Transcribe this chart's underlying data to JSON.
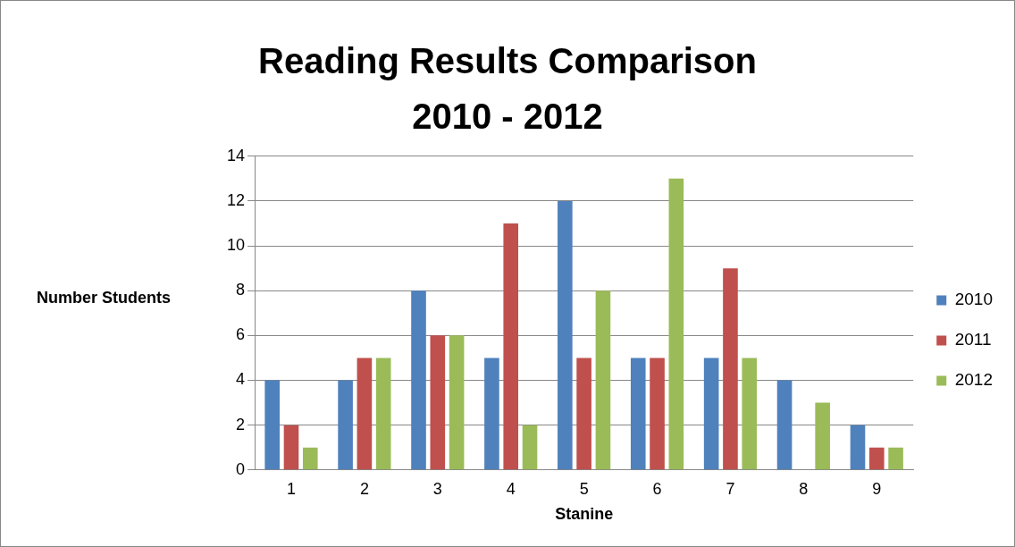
{
  "chart_data": {
    "type": "bar",
    "title": "Reading Results Comparison 2010 - 2012",
    "xlabel": "Stanine",
    "ylabel": "Number Students",
    "categories": [
      "1",
      "2",
      "3",
      "4",
      "5",
      "6",
      "7",
      "8",
      "9"
    ],
    "series": [
      {
        "name": "2010",
        "color": "#4f81bd",
        "values": [
          4,
          4,
          8,
          5,
          12,
          5,
          5,
          4,
          2
        ]
      },
      {
        "name": "2011",
        "color": "#c0504d",
        "values": [
          2,
          5,
          6,
          11,
          5,
          5,
          9,
          0,
          1
        ]
      },
      {
        "name": "2012",
        "color": "#9bbb59",
        "values": [
          1,
          5,
          6,
          2,
          8,
          13,
          5,
          3,
          1
        ]
      }
    ],
    "ylim": [
      0,
      14
    ],
    "yticks": [
      0,
      2,
      4,
      6,
      8,
      10,
      12,
      14
    ],
    "grid": "y",
    "legend": "right"
  }
}
